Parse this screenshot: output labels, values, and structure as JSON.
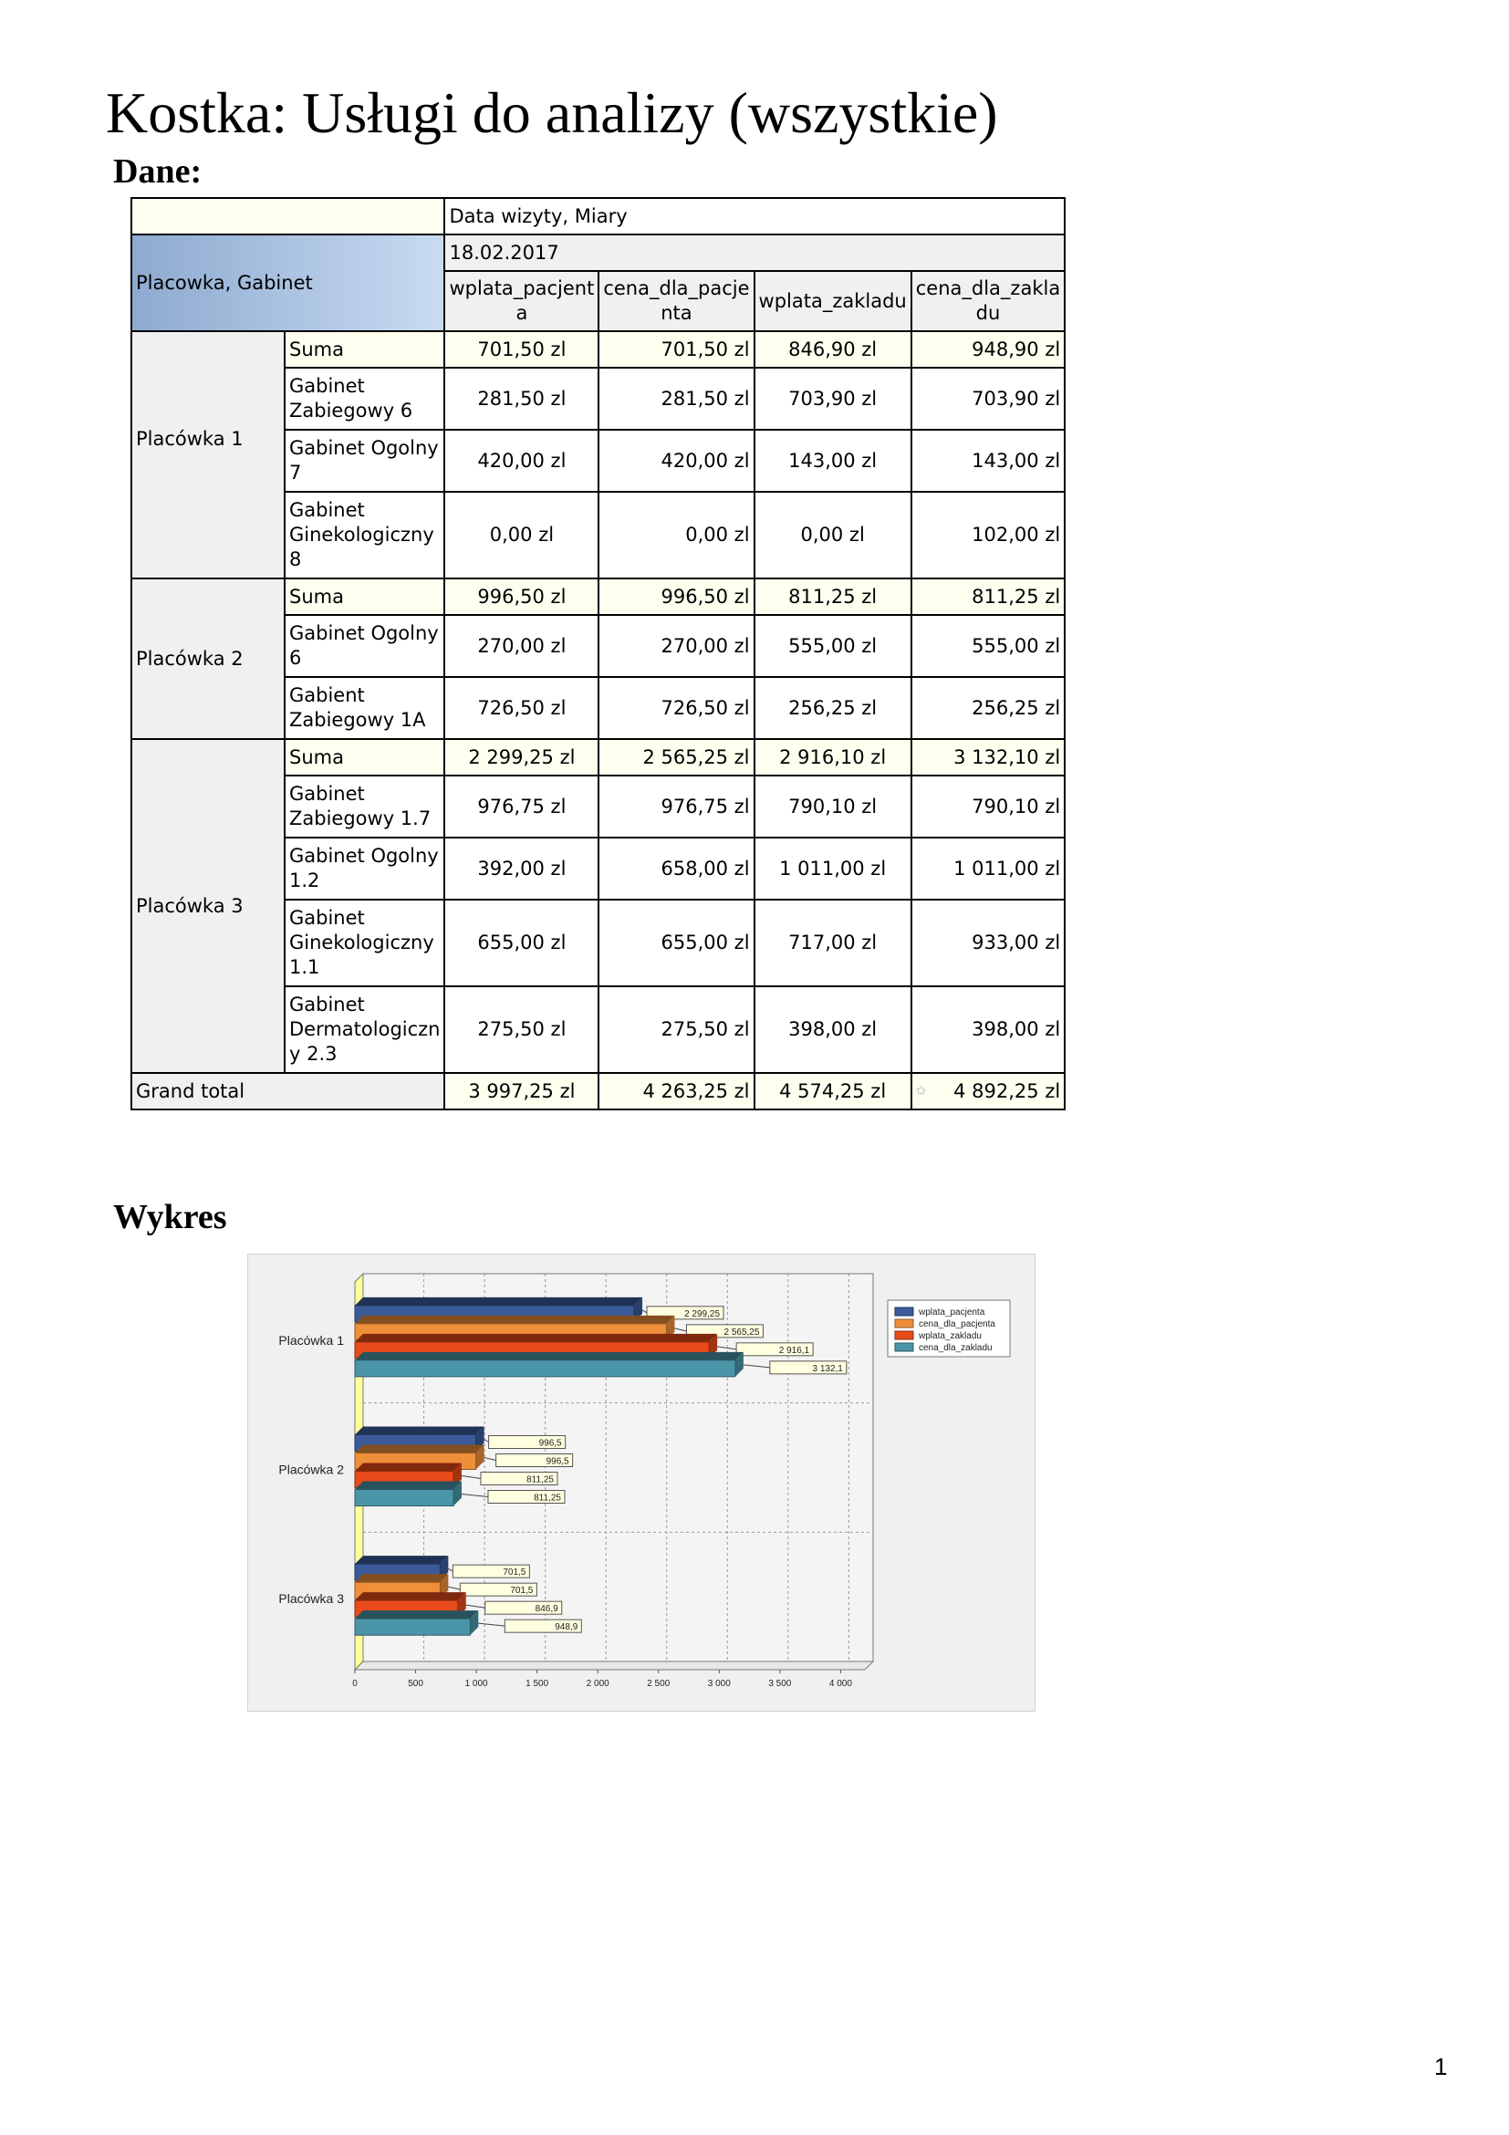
{
  "title": "Kostka: Usługi do analizy (wszystkie)",
  "section_data": "Dane:",
  "section_chart": "Wykres",
  "page_number": "1",
  "table": {
    "col_dim": "Data wizyty, Miary",
    "row_dim": "Placowka, Gabinet",
    "date": "18.02.2017",
    "measures": [
      "wplata_pacjent a",
      "cena_dla_pacje nta",
      "wplata_zakladu",
      "cena_dla_zakla du"
    ],
    "groups": [
      {
        "name": "Placówka 1",
        "rows": [
          {
            "label": "Suma",
            "values": [
              "701,50 zl",
              "701,50 zl",
              "846,90 zl",
              "948,90 zl"
            ]
          },
          {
            "label": "Gabinet Zabiegowy 6",
            "values": [
              "281,50 zl",
              "281,50 zl",
              "703,90 zl",
              "703,90 zl"
            ]
          },
          {
            "label": "Gabinet Ogolny 7",
            "values": [
              "420,00 zl",
              "420,00 zl",
              "143,00 zl",
              "143,00 zl"
            ]
          },
          {
            "label": "Gabinet Ginekologiczny 8",
            "values": [
              "0,00 zl",
              "0,00 zl",
              "0,00 zl",
              "102,00 zl"
            ]
          }
        ]
      },
      {
        "name": "Placówka 2",
        "rows": [
          {
            "label": "Suma",
            "values": [
              "996,50 zl",
              "996,50 zl",
              "811,25 zl",
              "811,25 zl"
            ]
          },
          {
            "label": "Gabinet Ogolny 6",
            "values": [
              "270,00 zl",
              "270,00 zl",
              "555,00 zl",
              "555,00 zl"
            ]
          },
          {
            "label": "Gabient Zabiegowy 1A",
            "values": [
              "726,50 zl",
              "726,50 zl",
              "256,25 zl",
              "256,25 zl"
            ]
          }
        ]
      },
      {
        "name": "Placówka 3",
        "rows": [
          {
            "label": "Suma",
            "values": [
              "2 299,25 zl",
              "2 565,25 zl",
              "2 916,10 zl",
              "3 132,10 zl"
            ]
          },
          {
            "label": "Gabinet Zabiegowy 1.7",
            "values": [
              "976,75 zl",
              "976,75 zl",
              "790,10 zl",
              "790,10 zl"
            ]
          },
          {
            "label": "Gabinet Ogolny 1.2",
            "values": [
              "392,00 zl",
              "658,00 zl",
              "1 011,00 zl",
              "1 011,00 zl"
            ]
          },
          {
            "label": "Gabinet Ginekologiczny 1.1",
            "values": [
              "655,00 zl",
              "655,00 zl",
              "717,00 zl",
              "933,00 zl"
            ]
          },
          {
            "label": "Gabinet Dermatologiczn y 2.3",
            "values": [
              "275,50 zl",
              "275,50 zl",
              "398,00 zl",
              "398,00 zl"
            ]
          }
        ]
      }
    ],
    "grand_total": {
      "label": "Grand total",
      "values": [
        "3 997,25 zl",
        "4 263,25 zl",
        "4 574,25 zl",
        "4 892,25 zl"
      ]
    }
  },
  "chart_data": {
    "type": "bar",
    "orientation": "horizontal",
    "categories": [
      "Placówka 1",
      "Placówka 2",
      "Placówka 3"
    ],
    "series": [
      {
        "name": "wplata_pacjenta",
        "color": "#3a5a9a",
        "values": [
          2299.25,
          996.5,
          701.5
        ],
        "labels": [
          "2 299,25",
          "996,5",
          "701,5"
        ]
      },
      {
        "name": "cena_dla_pacjenta",
        "color": "#f08f3a",
        "values": [
          2565.25,
          996.5,
          701.5
        ],
        "labels": [
          "2 565,25",
          "996,5",
          "701,5"
        ]
      },
      {
        "name": "wplata_zakladu",
        "color": "#e84a1a",
        "values": [
          2916.1,
          811.25,
          846.9
        ],
        "labels": [
          "2 916,1",
          "811,25",
          "846,9"
        ]
      },
      {
        "name": "cena_dla_zakladu",
        "color": "#4a96a8",
        "values": [
          3132.1,
          811.25,
          948.9
        ],
        "labels": [
          "3 132,1",
          "811,25",
          "948,9"
        ]
      }
    ],
    "xlim": [
      0,
      4200
    ],
    "xticks": [
      0,
      500,
      1000,
      1500,
      2000,
      2500,
      3000,
      3500,
      4000
    ],
    "xtick_labels": [
      "0",
      "500",
      "1 000",
      "1 500",
      "2 000",
      "2 500",
      "3 000",
      "3 500",
      "4 000"
    ],
    "grid": true,
    "legend": "top-right"
  }
}
